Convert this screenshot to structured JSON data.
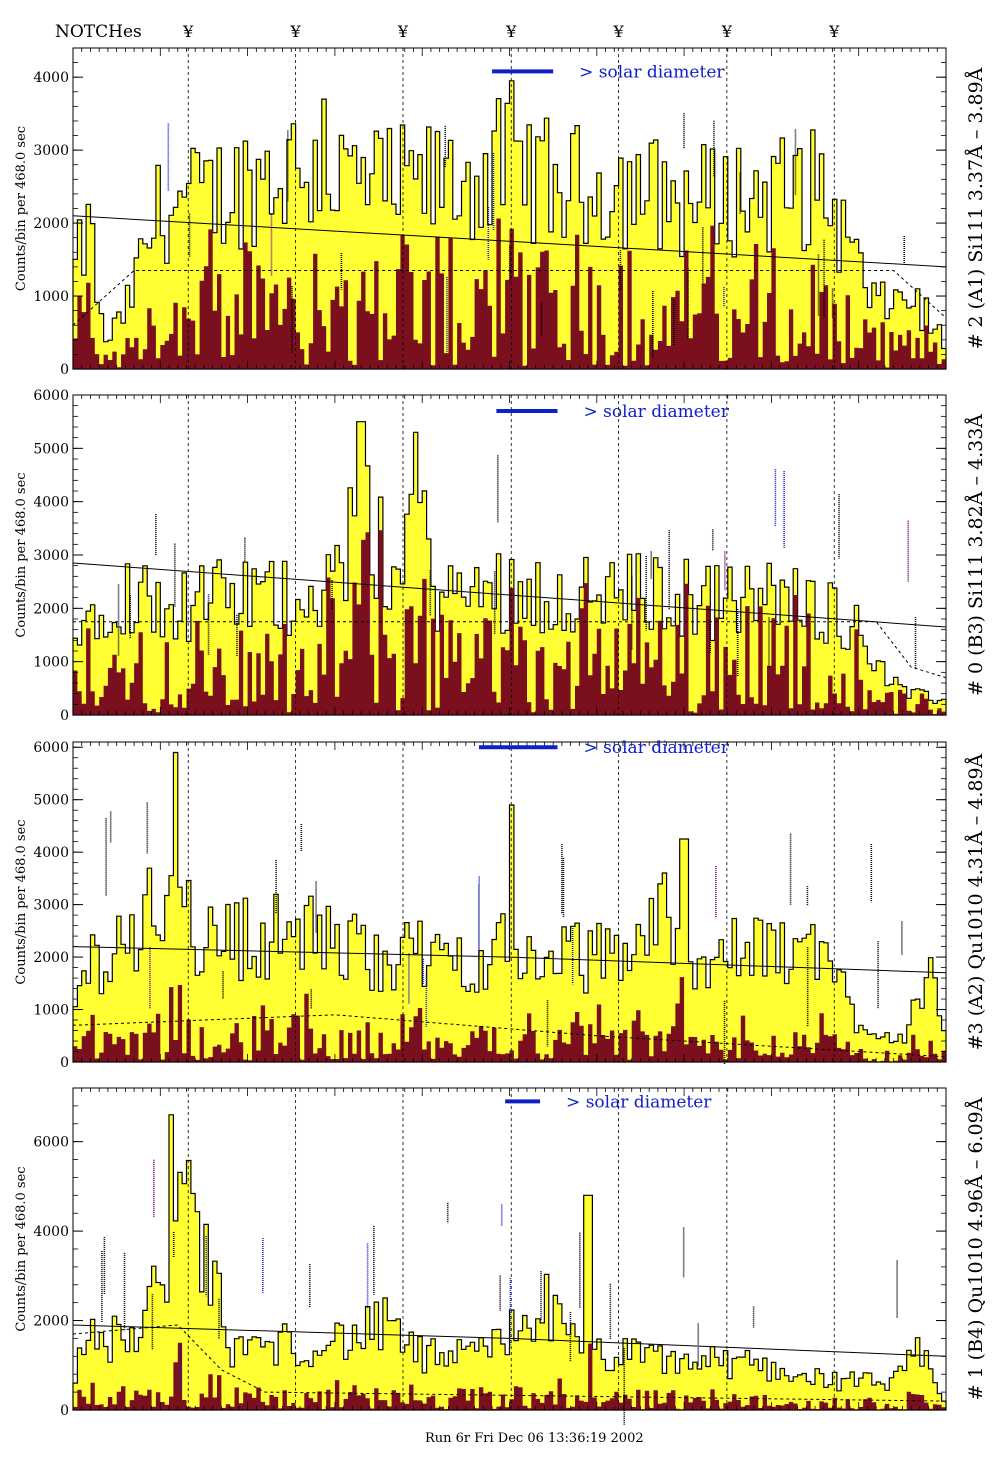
{
  "header": {
    "notches_label": "NOTCHes",
    "notch_symbol": "¥"
  },
  "footer": {
    "run_label": "Run 6r  Fri Dec 06 13:36:19 2002"
  },
  "colors": {
    "outer_fill": "#ffff33",
    "inner_fill": "#7a0f1e",
    "solar_bar": "#1020c8",
    "outline": "#000000"
  },
  "chart_data": [
    {
      "type": "bar",
      "title": "# 2 (A1) Si111  3.37Å – 3.89Å",
      "ylabel": "Counts/bin per   468.0 sec",
      "annotation": "> solar diameter",
      "ylim": [
        0,
        4400
      ],
      "yticks": [
        0,
        1000,
        2000,
        3000,
        4000
      ],
      "notch_positions": [
        0.132,
        0.255,
        0.378,
        0.502,
        0.625,
        0.749,
        0.872
      ],
      "profile": [
        {
          "x": 0.0,
          "v": 1500
        },
        {
          "x": 0.02,
          "v": 2250
        },
        {
          "x": 0.035,
          "v": 400
        },
        {
          "x": 0.06,
          "v": 900
        },
        {
          "x": 0.08,
          "v": 1800
        },
        {
          "x": 0.1,
          "v": 2600
        },
        {
          "x": 0.14,
          "v": 2700
        },
        {
          "x": 0.2,
          "v": 3000
        },
        {
          "x": 0.26,
          "v": 3300
        },
        {
          "x": 0.3,
          "v": 3100
        },
        {
          "x": 0.36,
          "v": 2900
        },
        {
          "x": 0.44,
          "v": 3000
        },
        {
          "x": 0.5,
          "v": 3300
        },
        {
          "x": 0.56,
          "v": 2900
        },
        {
          "x": 0.62,
          "v": 3000
        },
        {
          "x": 0.7,
          "v": 2700
        },
        {
          "x": 0.78,
          "v": 2800
        },
        {
          "x": 0.86,
          "v": 2900
        },
        {
          "x": 0.92,
          "v": 1000
        },
        {
          "x": 0.96,
          "v": 1200
        },
        {
          "x": 1.0,
          "v": 400
        }
      ],
      "inner_ratio": 0.42,
      "spikes": [
        {
          "x": 0.502,
          "v": 3950
        },
        {
          "x": 0.287,
          "v": 3700
        }
      ],
      "solid_line": [
        {
          "x": 0.0,
          "v": 2100
        },
        {
          "x": 0.5,
          "v": 1750
        },
        {
          "x": 1.0,
          "v": 1400
        }
      ],
      "dashed_line": [
        {
          "x": 0.0,
          "v": 600
        },
        {
          "x": 0.07,
          "v": 1350
        },
        {
          "x": 0.94,
          "v": 1350
        },
        {
          "x": 1.0,
          "v": 700
        }
      ],
      "solar_bar": {
        "x0": 0.48,
        "x1": 0.55,
        "v": 4080
      }
    },
    {
      "type": "bar",
      "title": "# 0 (B3) Si111  3.82Å – 4.33Å",
      "ylabel": "Counts/bin per   468.0 sec",
      "annotation": "> solar diameter",
      "ylim": [
        0,
        6000
      ],
      "yticks": [
        0,
        1000,
        2000,
        3000,
        4000,
        5000,
        6000
      ],
      "notch_positions": [
        0.132,
        0.255,
        0.378,
        0.502,
        0.625,
        0.749,
        0.872
      ],
      "profile": [
        {
          "x": 0.0,
          "v": 1500
        },
        {
          "x": 0.03,
          "v": 2600
        },
        {
          "x": 0.06,
          "v": 2700
        },
        {
          "x": 0.12,
          "v": 2400
        },
        {
          "x": 0.18,
          "v": 2600
        },
        {
          "x": 0.24,
          "v": 2600
        },
        {
          "x": 0.3,
          "v": 3000
        },
        {
          "x": 0.33,
          "v": 4400
        },
        {
          "x": 0.37,
          "v": 3000
        },
        {
          "x": 0.39,
          "v": 4700
        },
        {
          "x": 0.42,
          "v": 2600
        },
        {
          "x": 0.5,
          "v": 2800
        },
        {
          "x": 0.58,
          "v": 2600
        },
        {
          "x": 0.66,
          "v": 2700
        },
        {
          "x": 0.74,
          "v": 2500
        },
        {
          "x": 0.82,
          "v": 2600
        },
        {
          "x": 0.88,
          "v": 2300
        },
        {
          "x": 0.95,
          "v": 500
        },
        {
          "x": 1.0,
          "v": 300
        }
      ],
      "inner_ratio": 0.55,
      "spikes": [
        {
          "x": 0.33,
          "v": 5500
        },
        {
          "x": 0.393,
          "v": 5300
        }
      ],
      "solid_line": [
        {
          "x": 0.0,
          "v": 2850
        },
        {
          "x": 0.5,
          "v": 2250
        },
        {
          "x": 1.0,
          "v": 1650
        }
      ],
      "dashed_line": [
        {
          "x": 0.0,
          "v": 1750
        },
        {
          "x": 0.92,
          "v": 1750
        },
        {
          "x": 0.96,
          "v": 900
        },
        {
          "x": 1.0,
          "v": 700
        }
      ],
      "solar_bar": {
        "x0": 0.485,
        "x1": 0.555,
        "v": 5700
      }
    },
    {
      "type": "bar",
      "title": "#3 (A2) Qu1010  4.31Å – 4.89Å",
      "ylabel": "Counts/bin per   468.0 sec",
      "annotation": "> solar diameter",
      "ylim": [
        0,
        6100
      ],
      "yticks": [
        0,
        1000,
        2000,
        3000,
        4000,
        5000,
        6000
      ],
      "notch_positions": [
        0.132,
        0.255,
        0.378,
        0.502,
        0.625,
        0.749,
        0.872
      ],
      "profile": [
        {
          "x": 0.0,
          "v": 1200
        },
        {
          "x": 0.02,
          "v": 2200
        },
        {
          "x": 0.06,
          "v": 2600
        },
        {
          "x": 0.1,
          "v": 3600
        },
        {
          "x": 0.12,
          "v": 4800
        },
        {
          "x": 0.14,
          "v": 2700
        },
        {
          "x": 0.2,
          "v": 2800
        },
        {
          "x": 0.26,
          "v": 2900
        },
        {
          "x": 0.32,
          "v": 2500
        },
        {
          "x": 0.38,
          "v": 2400
        },
        {
          "x": 0.44,
          "v": 2300
        },
        {
          "x": 0.5,
          "v": 2500
        },
        {
          "x": 0.56,
          "v": 2300
        },
        {
          "x": 0.62,
          "v": 2400
        },
        {
          "x": 0.68,
          "v": 3300
        },
        {
          "x": 0.72,
          "v": 2300
        },
        {
          "x": 0.8,
          "v": 2500
        },
        {
          "x": 0.86,
          "v": 2500
        },
        {
          "x": 0.9,
          "v": 900
        },
        {
          "x": 0.95,
          "v": 500
        },
        {
          "x": 0.98,
          "v": 2100
        },
        {
          "x": 1.0,
          "v": 300
        }
      ],
      "inner_ratio": 0.28,
      "spikes": [
        {
          "x": 0.118,
          "v": 5900
        },
        {
          "x": 0.502,
          "v": 4900
        },
        {
          "x": 0.7,
          "v": 4250
        }
      ],
      "solid_line": [
        {
          "x": 0.0,
          "v": 2200
        },
        {
          "x": 0.5,
          "v": 2000
        },
        {
          "x": 1.0,
          "v": 1700
        }
      ],
      "dashed_line": [
        {
          "x": 0.0,
          "v": 700
        },
        {
          "x": 0.3,
          "v": 900
        },
        {
          "x": 0.6,
          "v": 500
        },
        {
          "x": 0.9,
          "v": 200
        },
        {
          "x": 1.0,
          "v": 100
        }
      ],
      "solar_bar": {
        "x0": 0.465,
        "x1": 0.555,
        "v": 6000
      }
    },
    {
      "type": "bar",
      "title": "# 1 (B4) Qu1010 4.96Å – 6.09Å",
      "ylabel": "Counts/bin per   468.0 sec",
      "annotation": "> solar diameter",
      "ylim": [
        0,
        7200
      ],
      "yticks": [
        0,
        2000,
        4000,
        6000
      ],
      "notch_positions": [
        0.132,
        0.255,
        0.378,
        0.502,
        0.625,
        0.749,
        0.872
      ],
      "profile": [
        {
          "x": 0.0,
          "v": 900
        },
        {
          "x": 0.02,
          "v": 1800
        },
        {
          "x": 0.05,
          "v": 1900
        },
        {
          "x": 0.08,
          "v": 2000
        },
        {
          "x": 0.1,
          "v": 3500
        },
        {
          "x": 0.12,
          "v": 5300
        },
        {
          "x": 0.15,
          "v": 4300
        },
        {
          "x": 0.18,
          "v": 1600
        },
        {
          "x": 0.24,
          "v": 1700
        },
        {
          "x": 0.3,
          "v": 1800
        },
        {
          "x": 0.36,
          "v": 2200
        },
        {
          "x": 0.4,
          "v": 1400
        },
        {
          "x": 0.46,
          "v": 1400
        },
        {
          "x": 0.5,
          "v": 2000
        },
        {
          "x": 0.54,
          "v": 2800
        },
        {
          "x": 0.58,
          "v": 1500
        },
        {
          "x": 0.64,
          "v": 1400
        },
        {
          "x": 0.7,
          "v": 1300
        },
        {
          "x": 0.78,
          "v": 1200
        },
        {
          "x": 0.86,
          "v": 800
        },
        {
          "x": 0.94,
          "v": 700
        },
        {
          "x": 0.97,
          "v": 1500
        },
        {
          "x": 1.0,
          "v": 200
        }
      ],
      "inner_ratio": 0.22,
      "spikes": [
        {
          "x": 0.112,
          "v": 6600
        },
        {
          "x": 0.59,
          "v": 4800
        }
      ],
      "solid_line": [
        {
          "x": 0.0,
          "v": 1900
        },
        {
          "x": 0.5,
          "v": 1600
        },
        {
          "x": 1.0,
          "v": 1200
        }
      ],
      "dashed_line": [
        {
          "x": 0.0,
          "v": 1700
        },
        {
          "x": 0.12,
          "v": 1900
        },
        {
          "x": 0.17,
          "v": 900
        },
        {
          "x": 0.22,
          "v": 400
        },
        {
          "x": 1.0,
          "v": 200
        }
      ],
      "solar_bar": {
        "x0": 0.495,
        "x1": 0.535,
        "v": 6900
      }
    }
  ]
}
